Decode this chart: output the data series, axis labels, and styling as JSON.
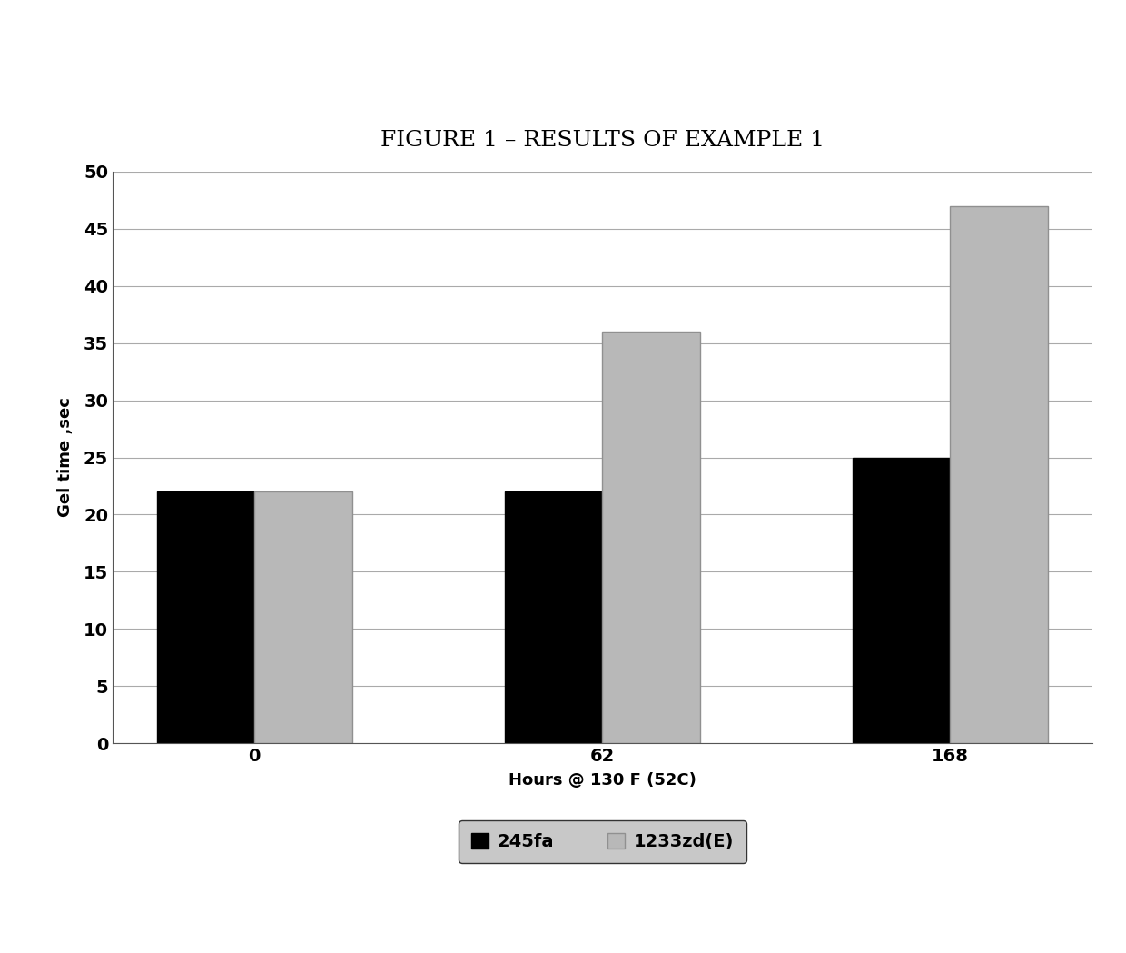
{
  "title": "FIGURE 1 – RESULTS OF EXAMPLE 1",
  "categories": [
    0,
    62,
    168
  ],
  "series_245fa": [
    22,
    22,
    25
  ],
  "series_1233zd": [
    22,
    36,
    47
  ],
  "bar_color_245fa": "#000000",
  "bar_color_1233zd": "#b8b8b8",
  "bar_edge_color_1233zd": "#909090",
  "ylabel": "Gel time ,sec",
  "xlabel": "Hours @ 130 F (52C)",
  "ylim": [
    0,
    50
  ],
  "yticks": [
    0,
    5,
    10,
    15,
    20,
    25,
    30,
    35,
    40,
    45,
    50
  ],
  "xtick_labels": [
    "0",
    "62",
    "168"
  ],
  "legend_label_245fa": "245fa",
  "legend_label_1233zd": "1233zd(E)",
  "title_fontsize": 18,
  "axis_label_fontsize": 13,
  "tick_fontsize": 14,
  "legend_fontsize": 14,
  "bar_width": 0.28,
  "background_color": "#ffffff",
  "legend_bg_color": "#c8c8c8"
}
